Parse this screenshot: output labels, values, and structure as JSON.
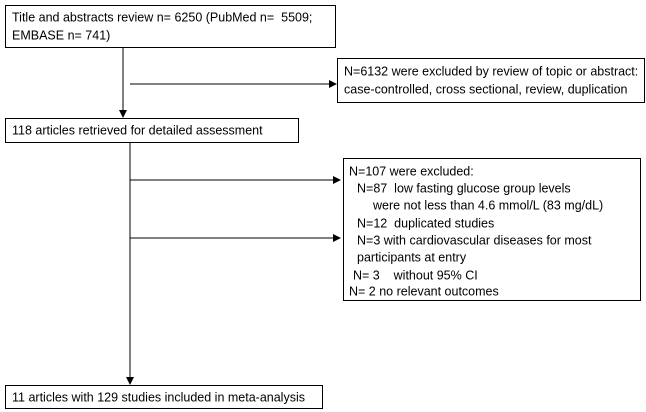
{
  "boxes": [
    {
      "lines": [
        "Title and abstracts review n= 6250 (PubMed n=  5509;",
        "EMBASE n= 741)"
      ]
    },
    {
      "lines": [
        "N=6132 were excluded by review of topic or abstract:",
        "case-controlled, cross sectional, review, duplication"
      ]
    },
    {
      "lines": [
        "118 articles retrieved for detailed assessment"
      ]
    },
    {
      "lines": [
        "N=107 were excluded:",
        "N=87  low fasting glucose group levels",
        "were not less than 4.6 mmol/L (83 mg/dL)",
        "N=12  duplicated studies",
        "N=3 with cardiovascular diseases for most",
        "participants at entry",
        "N= 3    without 95% CI",
        "N= 2 no relevant outcomes"
      ]
    },
    {
      "lines": [
        "11 articles with 129 studies included in meta-analysis"
      ]
    }
  ]
}
